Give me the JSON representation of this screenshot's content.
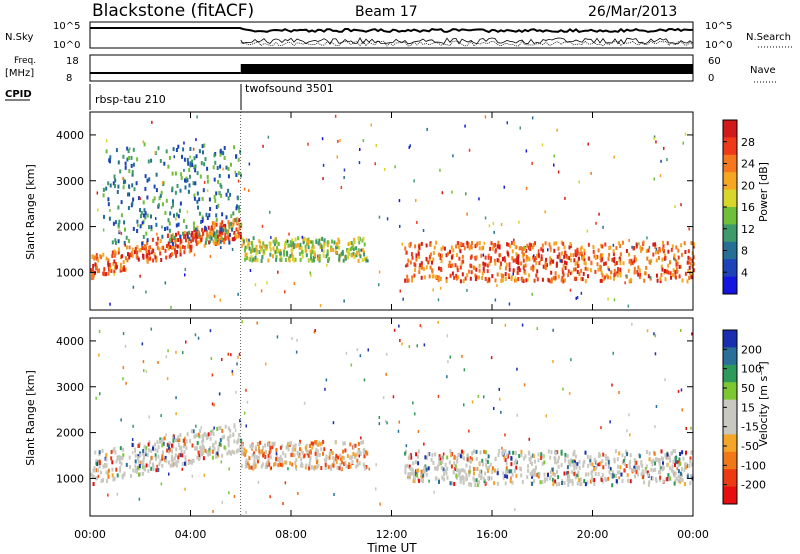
{
  "header": {
    "station": "Blackstone (fitACF)",
    "beam": "Beam 17",
    "date": "26/Mar/2013"
  },
  "status_panels": {
    "nsky_label": "N.Sky",
    "nsky_ticks": [
      "10^5",
      "10^0"
    ],
    "nsearch_label": "N.Search",
    "nsearch_ticks": [
      "10^5",
      "10^0"
    ],
    "freq_label": "Freq.",
    "freq_unit": "[MHz]",
    "freq_ticks": [
      "18",
      "8"
    ],
    "nave_label": "Nave",
    "nave_ticks": [
      "60",
      "0"
    ],
    "cpid_label": "CPID",
    "cpid_programs": [
      {
        "name": "rbsp-tau 210",
        "start_hour": 0
      },
      {
        "name": "twofsound 3501",
        "start_hour": 6
      }
    ]
  },
  "chart_data": [
    {
      "type": "heatmap",
      "name": "power",
      "ylabel": "Slant Range [km]",
      "ylim": [
        180,
        4500
      ],
      "yticks": [
        1000,
        2000,
        3000,
        4000
      ],
      "xlim": [
        0,
        24
      ],
      "colorbar_label": "Power [dB]",
      "colorbar_ticks": [
        "28",
        "24",
        "20",
        "16",
        "12",
        "8",
        "4"
      ],
      "colorbar_colors": [
        "#d11a1a",
        "#ef3a1a",
        "#f5781e",
        "#f6a721",
        "#d8d62a",
        "#6fbf3a",
        "#3e9a6a",
        "#256f96",
        "#1c43b7",
        "#1515e0"
      ],
      "scatter_bands": [
        {
          "t_start": 0.0,
          "t_end": 6.0,
          "r_start": 900,
          "r_end": 2300,
          "value_dB": 22,
          "note_text": ""
        },
        {
          "t_start": 0.5,
          "t_end": 6.0,
          "r_start": 1600,
          "r_end": 3800,
          "value_dB": 8,
          "note_text": ""
        },
        {
          "t_start": 6.0,
          "t_end": 11.0,
          "r_start": 1250,
          "r_end": 1750,
          "value_dB": 12,
          "note_text": ""
        },
        {
          "t_start": 12.5,
          "t_end": 24.0,
          "r_start": 800,
          "r_end": 1650,
          "value_dB": 20,
          "note_text": ""
        }
      ]
    },
    {
      "type": "heatmap",
      "name": "velocity",
      "ylabel": "Slant Range [km]",
      "xlabel": "Time UT",
      "ylim": [
        180,
        4500
      ],
      "yticks": [
        1000,
        2000,
        3000,
        4000
      ],
      "xlim": [
        0,
        24
      ],
      "xticks": [
        "00:00",
        "04:00",
        "08:00",
        "12:00",
        "16:00",
        "20:00",
        "00:00"
      ],
      "colorbar_label": "Velocity [m s⁻¹]",
      "colorbar_ticks": [
        "200",
        "100",
        "50",
        "15",
        "-15",
        "-50",
        "-100",
        "-200"
      ],
      "colorbar_colors": [
        "#1a2fb0",
        "#2a6f9a",
        "#2d9a5a",
        "#7cc832",
        "#c8c8c0",
        "#c8c8c0",
        "#f5a528",
        "#f07818",
        "#ec3a12",
        "#e60e0e"
      ],
      "scatter_bands": [
        {
          "t_start": 0.0,
          "t_end": 6.0,
          "r_start": 900,
          "r_end": 2000,
          "value_ms": 0
        },
        {
          "t_start": 6.0,
          "t_end": 11.0,
          "r_start": 1200,
          "r_end": 1800,
          "value_ms": -60
        },
        {
          "t_start": 12.5,
          "t_end": 24.0,
          "r_start": 850,
          "r_end": 1600,
          "value_ms": 0
        }
      ]
    }
  ]
}
